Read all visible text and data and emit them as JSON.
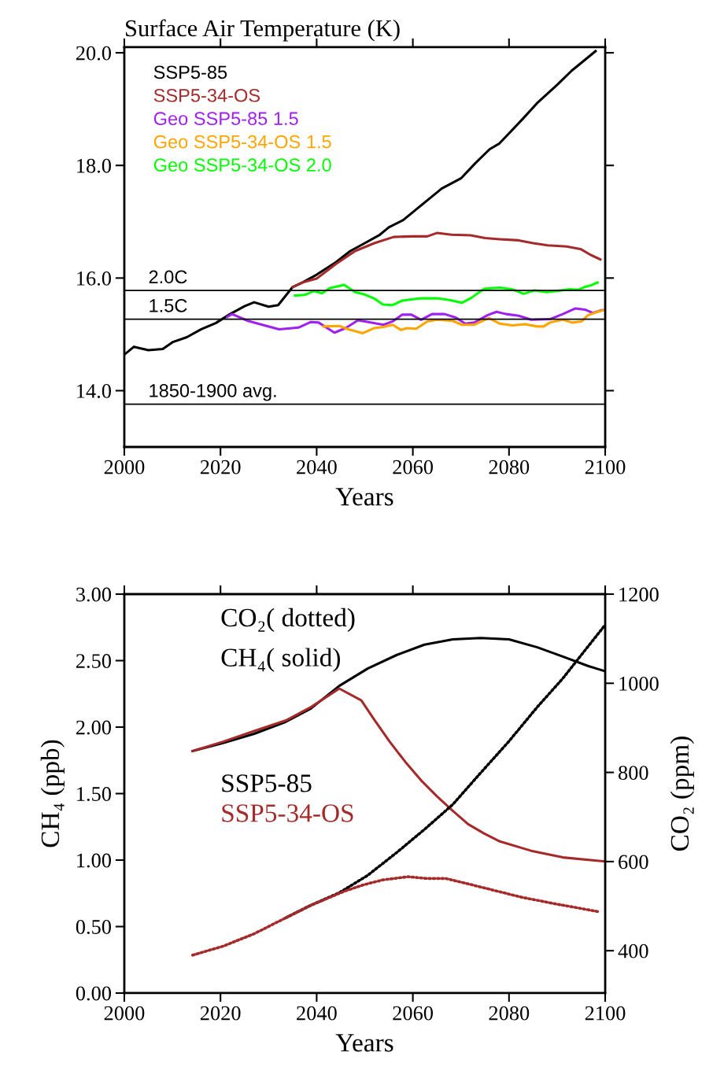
{
  "chart_data": [
    {
      "type": "line",
      "title": "Surface Air Temperature (K)",
      "xlabel": "Years",
      "xlim": [
        2000,
        2100
      ],
      "xticks": [
        2000,
        2020,
        2040,
        2060,
        2080,
        2100
      ],
      "ylim": [
        13.0,
        20.1
      ],
      "yticks": [
        {
          "value": 14,
          "label": "14.0"
        },
        {
          "value": 16,
          "label": "16.0"
        },
        {
          "value": 18,
          "label": "18.0"
        },
        {
          "value": 20,
          "label": "20.0"
        }
      ],
      "legend": "top left",
      "grid": false,
      "ref_lines": [
        {
          "axis": "y",
          "value": 15.78,
          "label": "2.0C",
          "color": "#000000"
        },
        {
          "axis": "y",
          "value": 15.27,
          "label": "1.5C",
          "color": "#000000"
        },
        {
          "axis": "y",
          "value": 13.76,
          "label": "1850-1900 avg.",
          "color": "#000000"
        }
      ],
      "series": [
        {
          "name": "SSP5-85",
          "color": "#000000",
          "x": [
            2000,
            2002,
            2005,
            2008,
            2010,
            2013,
            2016,
            2019,
            2022,
            2025,
            2027,
            2030,
            2032,
            2035,
            2037,
            2040,
            2044,
            2047,
            2050,
            2053,
            2055,
            2058,
            2060,
            2063,
            2066,
            2070,
            2073,
            2076,
            2078,
            2080,
            2083,
            2086,
            2090,
            2093,
            2096,
            2098
          ],
          "values": [
            14.64,
            14.78,
            14.72,
            14.74,
            14.86,
            14.95,
            15.09,
            15.2,
            15.36,
            15.5,
            15.57,
            15.49,
            15.52,
            15.84,
            15.92,
            16.06,
            16.28,
            16.48,
            16.62,
            16.76,
            16.9,
            17.03,
            17.17,
            17.38,
            17.59,
            17.77,
            18.04,
            18.29,
            18.39,
            18.57,
            18.84,
            19.12,
            19.43,
            19.68,
            19.89,
            20.03
          ]
        },
        {
          "name": "SSP5-34-OS",
          "color": "#a52a2a",
          "x": [
            2035,
            2037,
            2040,
            2044,
            2048,
            2052,
            2056,
            2060,
            2063,
            2065,
            2068,
            2072,
            2075,
            2078,
            2082,
            2085,
            2088,
            2092,
            2095,
            2097,
            2099
          ],
          "values": [
            15.84,
            15.92,
            15.99,
            16.25,
            16.48,
            16.62,
            16.73,
            16.74,
            16.74,
            16.8,
            16.77,
            16.76,
            16.71,
            16.69,
            16.67,
            16.62,
            16.58,
            16.56,
            16.51,
            16.41,
            16.33
          ]
        },
        {
          "name": "Geo SSP5-85 1.5",
          "color": "#a020f0",
          "x": [
            2021.4,
            2022.4,
            2025.7,
            2029.6,
            2032.2,
            2036.2,
            2038.8,
            2040.4,
            2043.7,
            2046.0,
            2048.6,
            2051.2,
            2053.9,
            2055.8,
            2057.8,
            2059.7,
            2061.7,
            2064.0,
            2066.6,
            2068.9,
            2070.9,
            2072.8,
            2075.5,
            2077.4,
            2079.4,
            2082.0,
            2084.6,
            2088.5,
            2091.2,
            2093.8,
            2095.8,
            2097.4,
            2099.3
          ],
          "values": [
            15.31,
            15.36,
            15.24,
            15.15,
            15.09,
            15.12,
            15.22,
            15.21,
            15.03,
            15.11,
            15.25,
            15.21,
            15.17,
            15.23,
            15.35,
            15.35,
            15.26,
            15.36,
            15.36,
            15.3,
            15.19,
            15.21,
            15.34,
            15.4,
            15.36,
            15.33,
            15.26,
            15.27,
            15.36,
            15.46,
            15.44,
            15.38,
            15.43
          ]
        },
        {
          "name": "Geo SSP5-34-OS 1.5",
          "color": "#ffa500",
          "x": [
            2041.4,
            2044.7,
            2046.6,
            2049.6,
            2051.9,
            2053.9,
            2055.8,
            2057.5,
            2058.8,
            2060.7,
            2063.0,
            2065.0,
            2068.3,
            2070.2,
            2072.8,
            2075.8,
            2078.1,
            2080.7,
            2083.3,
            2085.9,
            2087.2,
            2088.5,
            2091.2,
            2093.1,
            2095.1,
            2096.4,
            2098.4,
            2100
          ],
          "values": [
            15.14,
            15.15,
            15.09,
            15.02,
            15.11,
            15.13,
            15.17,
            15.08,
            15.11,
            15.1,
            15.23,
            15.26,
            15.24,
            15.17,
            15.17,
            15.29,
            15.19,
            15.16,
            15.18,
            15.14,
            15.14,
            15.21,
            15.26,
            15.21,
            15.23,
            15.34,
            15.4,
            15.44
          ]
        },
        {
          "name": "Geo SSP5-34-OS 2.0",
          "color": "#00ff00",
          "x": [
            2035.5,
            2037.5,
            2039.4,
            2041.1,
            2042.7,
            2045.7,
            2048.0,
            2049.9,
            2051.9,
            2053.8,
            2055.8,
            2057.8,
            2061.7,
            2065.0,
            2067.6,
            2070.2,
            2072.2,
            2074.8,
            2078.1,
            2080.7,
            2083.0,
            2085.3,
            2087.9,
            2092.5,
            2094.4,
            2095.7,
            2097.0,
            2098.4
          ],
          "values": [
            15.69,
            15.7,
            15.77,
            15.73,
            15.82,
            15.88,
            15.75,
            15.71,
            15.64,
            15.53,
            15.52,
            15.6,
            15.64,
            15.64,
            15.61,
            15.56,
            15.65,
            15.81,
            15.83,
            15.8,
            15.72,
            15.78,
            15.75,
            15.8,
            15.79,
            15.84,
            15.87,
            15.92
          ]
        }
      ]
    },
    {
      "type": "line",
      "xlabel": "Years",
      "ylabel": "CH₄ (ppb)",
      "y2label": "CO₂ (ppm)",
      "xlim": [
        2000,
        2100
      ],
      "xticks": [
        2000,
        2020,
        2040,
        2060,
        2080,
        2100
      ],
      "ylim": [
        0,
        3
      ],
      "yticks": [
        {
          "value": 0,
          "label": "0.00"
        },
        {
          "value": 0.5,
          "label": "0.50"
        },
        {
          "value": 1,
          "label": "1.00"
        },
        {
          "value": 1.5,
          "label": "1.50"
        },
        {
          "value": 2,
          "label": "2.00"
        },
        {
          "value": 2.5,
          "label": "2.50"
        },
        {
          "value": 3,
          "label": "3.00"
        }
      ],
      "y2lim": [
        305,
        1200
      ],
      "y2ticks": [
        400,
        600,
        800,
        1000,
        1200
      ],
      "legend": "left",
      "grid": false,
      "annotations": [
        "CO₂( dotted)",
        "CH₄( solid)"
      ],
      "series": [
        {
          "name": "SSP5-85",
          "color": "#000000",
          "line_style": "solid",
          "x": [
            2014.2,
            2020.5,
            2027.0,
            2033.6,
            2038.8,
            2044.7,
            2050.6,
            2056.5,
            2062.4,
            2068.3,
            2074.1,
            2080.0,
            2085.9,
            2091.2,
            2096.4,
            2100
          ],
          "values": [
            1.82,
            1.88,
            1.95,
            2.04,
            2.14,
            2.31,
            2.44,
            2.54,
            2.62,
            2.66,
            2.67,
            2.66,
            2.6,
            2.53,
            2.46,
            2.42
          ]
        },
        {
          "name": "SSP5-34-OS",
          "color": "#a52a2a",
          "line_style": "solid",
          "x": [
            2014.2,
            2020.5,
            2027.0,
            2033.6,
            2038.8,
            2044.7,
            2049.3,
            2051.9,
            2055.2,
            2058.4,
            2061.7,
            2065.0,
            2068.3,
            2071.5,
            2074.8,
            2078.1,
            2084.6,
            2091.2,
            2100
          ],
          "values": [
            1.82,
            1.89,
            1.97,
            2.05,
            2.15,
            2.29,
            2.2,
            2.06,
            1.89,
            1.74,
            1.6,
            1.48,
            1.37,
            1.27,
            1.2,
            1.14,
            1.07,
            1.02,
            0.99
          ]
        },
        {
          "color": "#000000",
          "axis": "y2",
          "line_style": "dotted",
          "x": [
            2033.6,
            2038.8,
            2044.7,
            2050.6,
            2056.5,
            2062.4,
            2068.3,
            2074.1,
            2080.0,
            2085.9,
            2091.2,
            2096.4,
            2100
          ],
          "values": [
            474,
            502,
            530,
            569,
            619,
            672,
            728,
            799,
            870,
            947,
            1011,
            1082,
            1131
          ]
        },
        {
          "color": "#a52a2a",
          "axis": "y2",
          "line_style": "dotted",
          "x": [
            2014.2,
            2020.5,
            2027.0,
            2033.6,
            2038.8,
            2045.9,
            2049.8,
            2053.8,
            2059.0,
            2063.0,
            2066.9,
            2072.2,
            2077.4,
            2082.6,
            2089.2,
            2098.4
          ],
          "values": [
            390,
            410,
            438,
            474,
            502,
            534,
            548,
            559,
            566,
            562,
            562,
            548,
            534,
            520,
            506,
            488
          ]
        }
      ]
    }
  ]
}
